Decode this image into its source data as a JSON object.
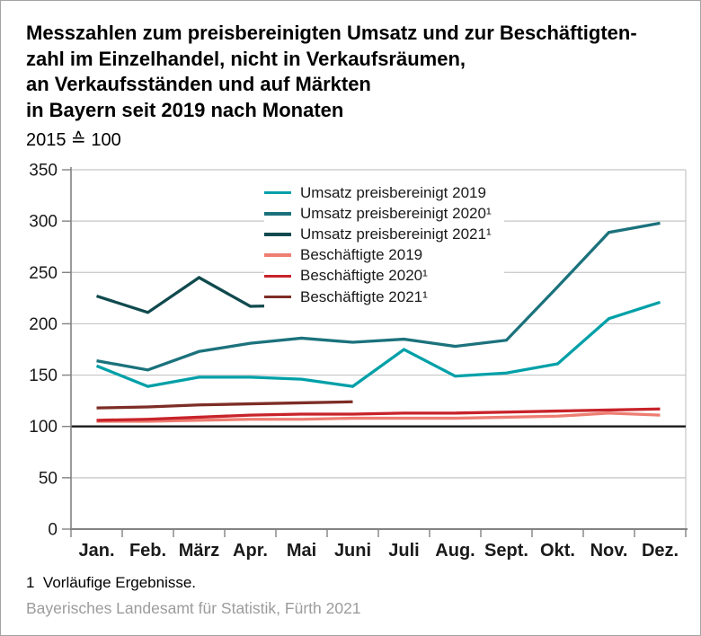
{
  "colors": {
    "grid": "#c6c6c6",
    "axis": "#828282",
    "baseline": "#1a1a1a",
    "source_text": "#9c9c9c"
  },
  "chart_data": {
    "type": "line",
    "title_lines": [
      "Messzahlen zum preisbereinigten Umsatz und zur Beschäftigten-",
      "zahl im Einzelhandel, nicht in Verkaufsräumen,",
      "an Verkaufsständen und auf Märkten",
      "in Bayern seit 2019 nach Monaten"
    ],
    "subtitle": "2015 ≙ 100",
    "categories": [
      "Jan.",
      "Feb.",
      "März",
      "Apr.",
      "Mai",
      "Juni",
      "Juli",
      "Aug.",
      "Sept.",
      "Okt.",
      "Nov.",
      "Dez."
    ],
    "yticks": [
      350,
      300,
      250,
      200,
      150,
      100,
      50,
      0
    ],
    "ylim": [
      0,
      350
    ],
    "grid": true,
    "baseline": 100,
    "legend_position": "top-center-inside",
    "series": [
      {
        "name": "Umsatz preisbereinigt 2019",
        "color": "#00a0a8",
        "values": [
          159,
          139,
          148,
          148,
          146,
          139,
          175,
          149,
          152,
          161,
          205,
          221
        ]
      },
      {
        "name": "Umsatz preisbereinigt 2020¹",
        "color": "#1b727c",
        "values": [
          164,
          155,
          173,
          181,
          186,
          182,
          185,
          178,
          184,
          236,
          289,
          298
        ]
      },
      {
        "name": "Umsatz preisbereinigt 2021¹",
        "color": "#104a4e",
        "values": [
          227,
          211,
          245,
          217,
          218,
          218,
          null,
          null,
          null,
          null,
          null,
          null
        ]
      },
      {
        "name": "Beschäftigte 2019",
        "color": "#ee7d72",
        "values": [
          105,
          105,
          106,
          107,
          107,
          108,
          108,
          108,
          109,
          110,
          113,
          111
        ]
      },
      {
        "name": "Beschäftigte 2020¹",
        "color": "#c8232a",
        "values": [
          106,
          107,
          109,
          111,
          112,
          112,
          113,
          113,
          114,
          115,
          116,
          117
        ]
      },
      {
        "name": "Beschäftigte 2021¹",
        "color": "#7d2d26",
        "values": [
          118,
          119,
          121,
          122,
          123,
          124,
          null,
          null,
          null,
          null,
          null,
          null
        ]
      }
    ],
    "footnote_marker": "1",
    "footnote_text": "Vorläufige Ergebnisse.",
    "source": "Bayerisches Landesamt für Statistik, Fürth 2021"
  }
}
